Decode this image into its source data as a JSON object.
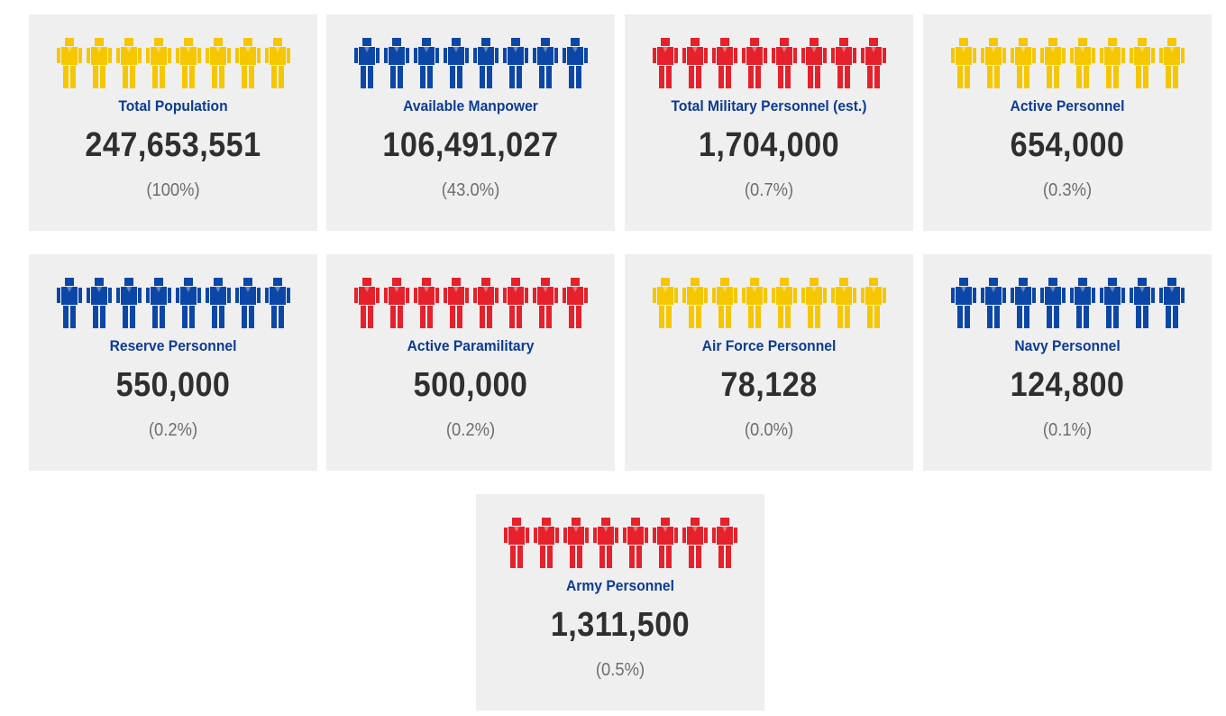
{
  "colors": {
    "yellow": "#f6c600",
    "blue": "#0c47a8",
    "red": "#e6212b",
    "label": "#0d3b94",
    "value": "#2f2f2f",
    "pct": "#6e6e6e",
    "card_bg": "#efefef"
  },
  "figures_per_card": 8,
  "chart_data": {
    "type": "table",
    "title": "",
    "items": [
      {
        "label": "Total Population",
        "value": "247,653,551",
        "percent": "(100%)",
        "color": "yellow"
      },
      {
        "label": "Available Manpower",
        "value": "106,491,027",
        "percent": "(43.0%)",
        "color": "blue"
      },
      {
        "label": "Total Military Personnel (est.)",
        "value": "1,704,000",
        "percent": "(0.7%)",
        "color": "red"
      },
      {
        "label": "Active Personnel",
        "value": "654,000",
        "percent": "(0.3%)",
        "color": "yellow"
      },
      {
        "label": "Reserve Personnel",
        "value": "550,000",
        "percent": "(0.2%)",
        "color": "blue"
      },
      {
        "label": "Active Paramilitary",
        "value": "500,000",
        "percent": "(0.2%)",
        "color": "red"
      },
      {
        "label": "Air Force Personnel",
        "value": "78,128",
        "percent": "(0.0%)",
        "color": "yellow"
      },
      {
        "label": "Navy Personnel",
        "value": "124,800",
        "percent": "(0.1%)",
        "color": "blue"
      },
      {
        "label": "Army Personnel",
        "value": "1,311,500",
        "percent": "(0.5%)",
        "color": "red"
      }
    ]
  }
}
